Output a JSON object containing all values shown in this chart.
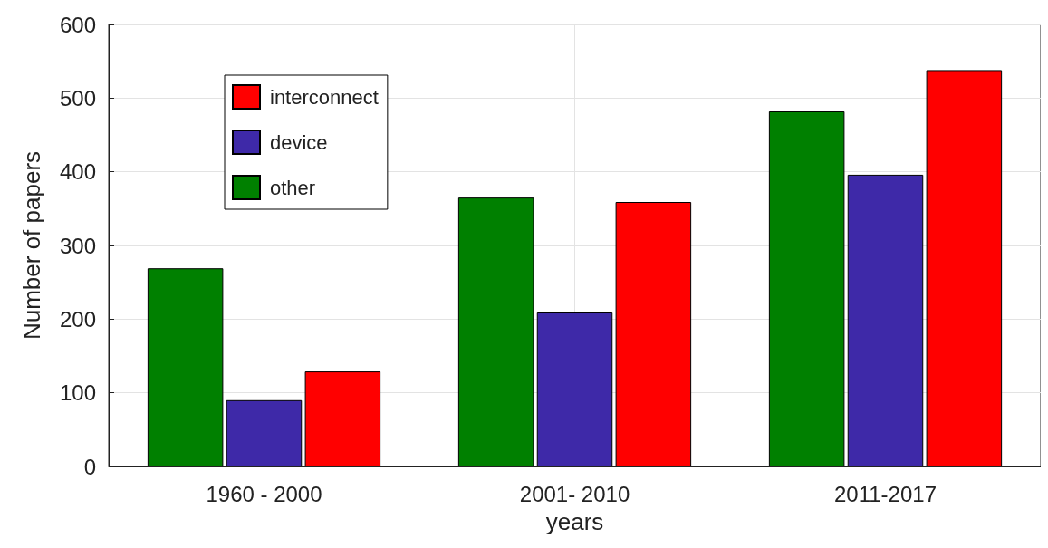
{
  "chart_data": {
    "type": "bar",
    "xlabel": "years",
    "ylabel": "Number of papers",
    "categories": [
      "1960 - 2000",
      "2001- 2010",
      "2011-2017"
    ],
    "series": [
      {
        "name": "other",
        "color": "#008000",
        "values": [
          269,
          365,
          482
        ]
      },
      {
        "name": "device",
        "color": "#3e29a8",
        "values": [
          90,
          209,
          396
        ]
      },
      {
        "name": "interconnect",
        "color": "#ff0000",
        "values": [
          129,
          359,
          538
        ]
      }
    ],
    "ylim": [
      0,
      600
    ],
    "yticks": [
      0,
      100,
      200,
      300,
      400,
      500,
      600
    ],
    "grid": true,
    "legend": "top left"
  }
}
